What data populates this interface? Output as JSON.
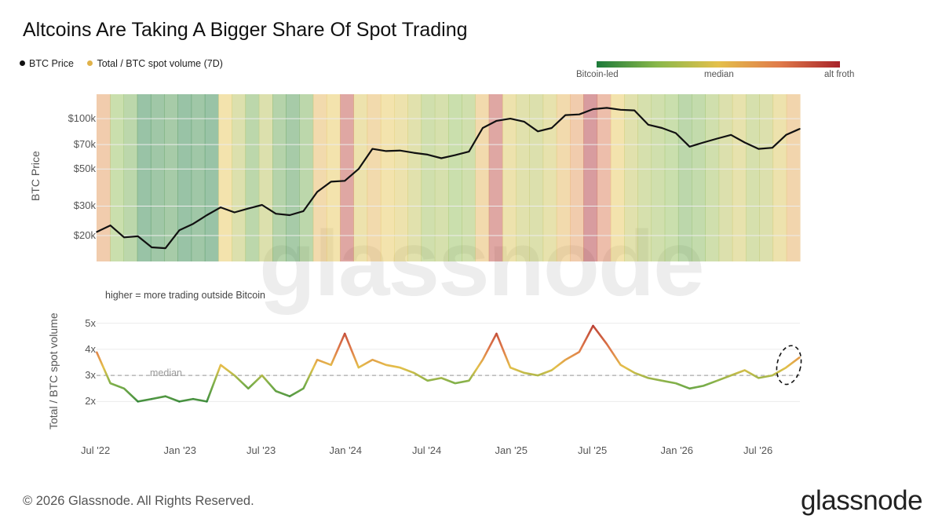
{
  "page": {
    "title": "Altcoins Are Taking A Bigger Share Of Spot Trading",
    "copyright": "© 2026 Glassnode. All Rights Reserved.",
    "logo": "glassnode",
    "watermark": "glassnode"
  },
  "legend": {
    "items": [
      {
        "label": "BTC Price",
        "color": "#111111"
      },
      {
        "label": "Total / BTC spot volume (7D)",
        "color": "#e0b24a"
      }
    ]
  },
  "color_scale": {
    "labels": [
      "Bitcoin-led",
      "median",
      "alt froth"
    ],
    "colors": [
      "#1d7a3a",
      "#8ab84a",
      "#e4c04a",
      "#e07b4a",
      "#a8232a"
    ]
  },
  "chart_data": [
    {
      "type": "line",
      "ylabel": "BTC Price",
      "scale": "log",
      "y_ticks": [
        {
          "value": 20000,
          "label": "$20k"
        },
        {
          "value": 30000,
          "label": "$30k"
        },
        {
          "value": 50000,
          "label": "$50k"
        },
        {
          "value": 70000,
          "label": "$70k"
        },
        {
          "value": 100000,
          "label": "$100k"
        }
      ],
      "ylim": [
        14000,
        140000
      ],
      "x_ticks": [
        "Jul '22",
        "Jan '23",
        "Jul '23",
        "Jan '24",
        "Jul '24",
        "Jan '25",
        "Jul '25",
        "Jan '26",
        "Jul '26"
      ],
      "grid": true,
      "background": "vertical bands coloured by Total / BTC spot volume (7D)",
      "series": [
        {
          "name": "BTC Price",
          "x": [
            "2022-07",
            "2022-08",
            "2022-09",
            "2022-10",
            "2022-11",
            "2022-12",
            "2023-01",
            "2023-02",
            "2023-03",
            "2023-04",
            "2023-05",
            "2023-06",
            "2023-07",
            "2023-08",
            "2023-09",
            "2023-10",
            "2023-11",
            "2023-12",
            "2024-01",
            "2024-02",
            "2024-03",
            "2024-04",
            "2024-05",
            "2024-06",
            "2024-07",
            "2024-08",
            "2024-09",
            "2024-10",
            "2024-11",
            "2024-12",
            "2025-01",
            "2025-02",
            "2025-03",
            "2025-04",
            "2025-05",
            "2025-06",
            "2025-07",
            "2025-08",
            "2025-09",
            "2025-10",
            "2025-11",
            "2025-12",
            "2026-01",
            "2026-02",
            "2026-03",
            "2026-04",
            "2026-05",
            "2026-06",
            "2026-07",
            "2026-08",
            "2026-09",
            "2026-10"
          ],
          "values": [
            21000,
            23000,
            19500,
            19800,
            17000,
            16800,
            21500,
            23500,
            26500,
            29500,
            27500,
            29000,
            30500,
            27000,
            26500,
            28000,
            36500,
            42000,
            42500,
            50000,
            66000,
            64000,
            64500,
            62500,
            61000,
            58000,
            60500,
            63500,
            88000,
            97000,
            100000,
            96000,
            84000,
            88000,
            105000,
            106000,
            114000,
            116000,
            113000,
            112000,
            92000,
            88000,
            82000,
            68000,
            72000,
            76000,
            80000,
            72000,
            66000,
            67000,
            80000,
            87000
          ]
        }
      ]
    },
    {
      "type": "line",
      "ylabel": "Total / BTC spot volume",
      "y_ticks": [
        {
          "value": 2,
          "label": "2x"
        },
        {
          "value": 3,
          "label": "3x"
        },
        {
          "value": 4,
          "label": "4x"
        },
        {
          "value": 5,
          "label": "5x"
        }
      ],
      "ylim": [
        1.5,
        5.5
      ],
      "x_ticks": [
        "Jul '22",
        "Jan '23",
        "Jul '23",
        "Jan '24",
        "Jul '24",
        "Jan '25",
        "Jul '25",
        "Jan '26",
        "Jul '26"
      ],
      "annotation": "higher = more trading outside Bitcoin",
      "median": {
        "value": 3.0,
        "label": "median"
      },
      "highlight": "dashed ellipse around latest values",
      "series": [
        {
          "name": "Total / BTC spot volume (7D)",
          "x": [
            "2022-07",
            "2022-08",
            "2022-09",
            "2022-10",
            "2022-11",
            "2022-12",
            "2023-01",
            "2023-02",
            "2023-03",
            "2023-04",
            "2023-05",
            "2023-06",
            "2023-07",
            "2023-08",
            "2023-09",
            "2023-10",
            "2023-11",
            "2023-12",
            "2024-01",
            "2024-02",
            "2024-03",
            "2024-04",
            "2024-05",
            "2024-06",
            "2024-07",
            "2024-08",
            "2024-09",
            "2024-10",
            "2024-11",
            "2024-12",
            "2025-01",
            "2025-02",
            "2025-03",
            "2025-04",
            "2025-05",
            "2025-06",
            "2025-07",
            "2025-08",
            "2025-09",
            "2025-10",
            "2025-11",
            "2025-12",
            "2026-01",
            "2026-02",
            "2026-03",
            "2026-04",
            "2026-05",
            "2026-06",
            "2026-07",
            "2026-08",
            "2026-09",
            "2026-10"
          ],
          "values": [
            3.9,
            2.7,
            2.5,
            2.0,
            2.1,
            2.2,
            2.0,
            2.1,
            2.0,
            3.4,
            3.0,
            2.5,
            3.0,
            2.4,
            2.2,
            2.5,
            3.6,
            3.4,
            4.6,
            3.3,
            3.6,
            3.4,
            3.3,
            3.1,
            2.8,
            2.9,
            2.7,
            2.8,
            3.6,
            4.6,
            3.3,
            3.1,
            3.0,
            3.2,
            3.6,
            3.9,
            4.9,
            4.2,
            3.4,
            3.1,
            2.9,
            2.8,
            2.7,
            2.5,
            2.6,
            2.8,
            3.0,
            3.2,
            2.9,
            3.0,
            3.3,
            3.7
          ]
        }
      ]
    }
  ]
}
